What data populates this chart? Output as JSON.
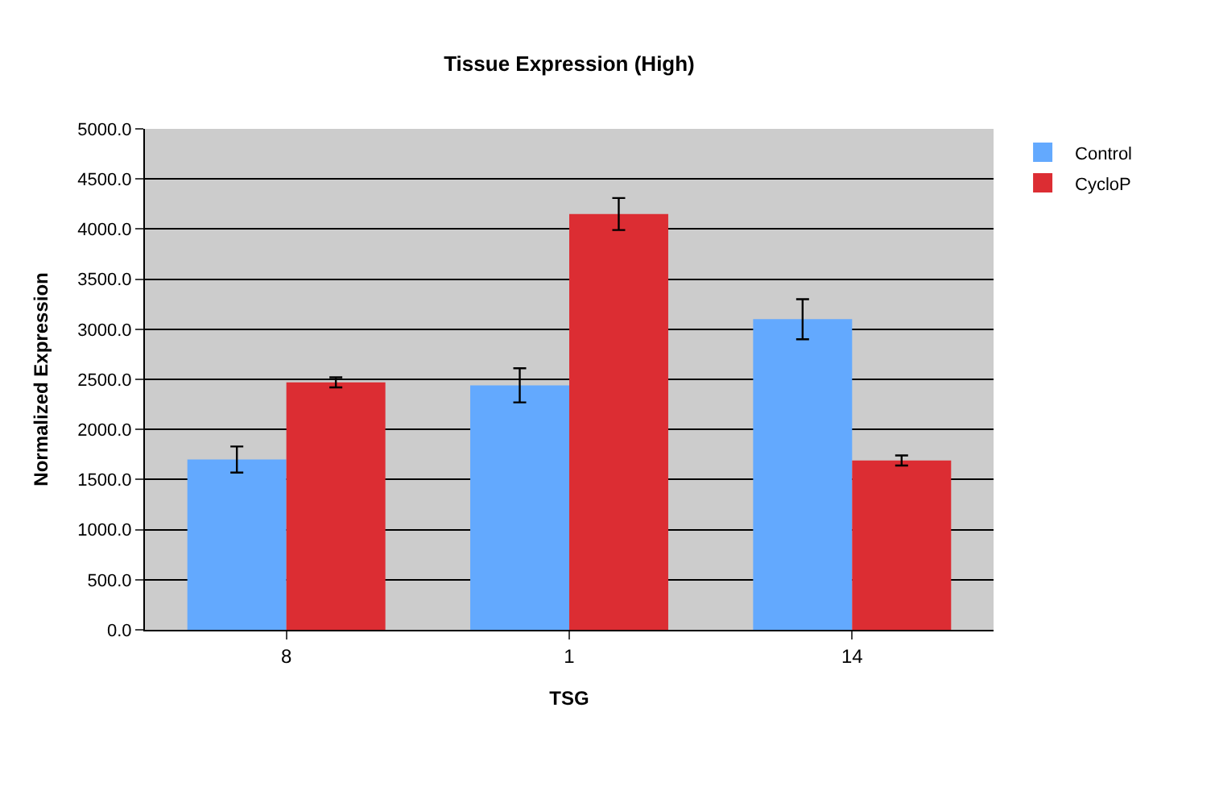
{
  "chart_data": {
    "type": "bar",
    "title": "Tissue Expression (High)",
    "xlabel": "TSG",
    "ylabel": "Normalized Expression",
    "categories": [
      "8",
      "1",
      "14"
    ],
    "series": [
      {
        "name": "Control",
        "color": "#63a9fe",
        "values": [
          1700,
          2440,
          3100
        ],
        "errors": [
          130,
          170,
          200
        ]
      },
      {
        "name": "CycloP",
        "color": "#dc2d33",
        "values": [
          2470,
          4150,
          1690
        ],
        "errors": [
          50,
          160,
          50
        ]
      }
    ],
    "ylim": [
      0,
      5000
    ],
    "yticks": [
      {
        "value": 0,
        "label": "0.0"
      },
      {
        "value": 500,
        "label": "500.0"
      },
      {
        "value": 1000,
        "label": "1000.0"
      },
      {
        "value": 1500,
        "label": "1500.0"
      },
      {
        "value": 2000,
        "label": "2000.0"
      },
      {
        "value": 2500,
        "label": "2500.0"
      },
      {
        "value": 3000,
        "label": "3000.0"
      },
      {
        "value": 3500,
        "label": "3500.0"
      },
      {
        "value": 4000,
        "label": "4000.0"
      },
      {
        "value": 4500,
        "label": "4500.0"
      },
      {
        "value": 5000,
        "label": "5000.0"
      }
    ],
    "grid": "y",
    "legend": "top right"
  }
}
